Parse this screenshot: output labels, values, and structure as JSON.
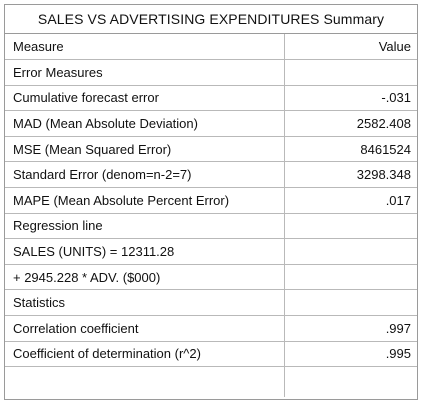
{
  "title": "SALES VS ADVERTISING EXPENDITURES Summary",
  "columns": {
    "measure": "Measure",
    "value": "Value"
  },
  "rows": [
    {
      "measure": "Error Measures",
      "value": ""
    },
    {
      "measure": "Cumulative forecast error",
      "value": "-.031"
    },
    {
      "measure": "MAD (Mean Absolute Deviation)",
      "value": "2582.408"
    },
    {
      "measure": "MSE (Mean Squared Error)",
      "value": "8461524"
    },
    {
      "measure": "Standard Error (denom=n-2=7)",
      "value": "3298.348"
    },
    {
      "measure": "MAPE (Mean Absolute Percent Error)",
      "value": ".017"
    },
    {
      "measure": "Regression line",
      "value": ""
    },
    {
      "measure": "SALES (UNITS) = 12311.28",
      "value": ""
    },
    {
      "measure": "+ 2945.228 * ADV. ($000)",
      "value": ""
    },
    {
      "measure": "Statistics",
      "value": ""
    },
    {
      "measure": "Correlation coefficient",
      "value": ".997"
    },
    {
      "measure": "Coefficient of determination (r^2)",
      "value": ".995"
    },
    {
      "measure": "",
      "value": ""
    }
  ]
}
